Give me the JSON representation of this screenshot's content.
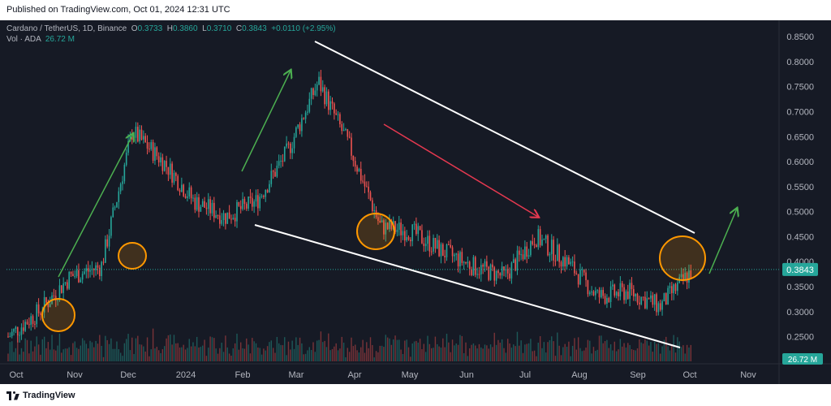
{
  "header": {
    "published": "Published on TradingView.com, Oct 01, 2024 12:31 UTC"
  },
  "legend": {
    "symbol": "Cardano / TetherUS, 1D, Binance",
    "o_label": "O",
    "o": "0.3733",
    "h_label": "H",
    "h": "0.3860",
    "l_label": "L",
    "l": "0.3710",
    "c_label": "C",
    "c": "0.3843",
    "change": "+0.0110 (+2.95%)",
    "vol_label": "Vol · ADA",
    "vol": "26.72 M"
  },
  "footer": {
    "brand": "TradingView"
  },
  "colors": {
    "up": "#26a69a",
    "down": "#ef5350",
    "background": "#161a25",
    "annotation_up": "#4caf50",
    "annotation_down": "#e53950",
    "circle": "#ff9800",
    "trendline": "#ffffff"
  },
  "chart_data": {
    "type": "candlestick",
    "symbol": "Cardano / TetherUS",
    "timeframe": "1D",
    "exchange": "Binance",
    "x_ticks": [
      "Oct",
      "Nov",
      "Dec",
      "2024",
      "Feb",
      "Mar",
      "Apr",
      "May",
      "Jun",
      "Jul",
      "Aug",
      "Sep",
      "Oct",
      "Nov"
    ],
    "y_ticks": [
      "0.8500",
      "0.8000",
      "0.7500",
      "0.7000",
      "0.6500",
      "0.6000",
      "0.5500",
      "0.5000",
      "0.4500",
      "0.4000",
      "0.3500",
      "0.3000",
      "0.2500"
    ],
    "ylim": [
      0.22,
      0.86
    ],
    "last_price": "0.3843",
    "last_volume": "26.72 M",
    "grid": false,
    "price_path": [
      [
        "Oct",
        0.25
      ],
      [
        "Nov",
        0.3
      ],
      [
        "Nov",
        0.37
      ],
      [
        "Dec",
        0.39
      ],
      [
        "Dec",
        0.66
      ],
      [
        "2024",
        0.6
      ],
      [
        "2024",
        0.52
      ],
      [
        "Feb",
        0.49
      ],
      [
        "Feb",
        0.52
      ],
      [
        "Mar",
        0.62
      ],
      [
        "Mar",
        0.76
      ],
      [
        "Apr",
        0.63
      ],
      [
        "Apr",
        0.47
      ],
      [
        "May",
        0.46
      ],
      [
        "Jun",
        0.42
      ],
      [
        "Jun",
        0.39
      ],
      [
        "Jul",
        0.37
      ],
      [
        "Jul",
        0.45
      ],
      [
        "Aug",
        0.4
      ],
      [
        "Aug",
        0.33
      ],
      [
        "Sep",
        0.34
      ],
      [
        "Sep",
        0.31
      ],
      [
        "Oct",
        0.38
      ]
    ]
  }
}
